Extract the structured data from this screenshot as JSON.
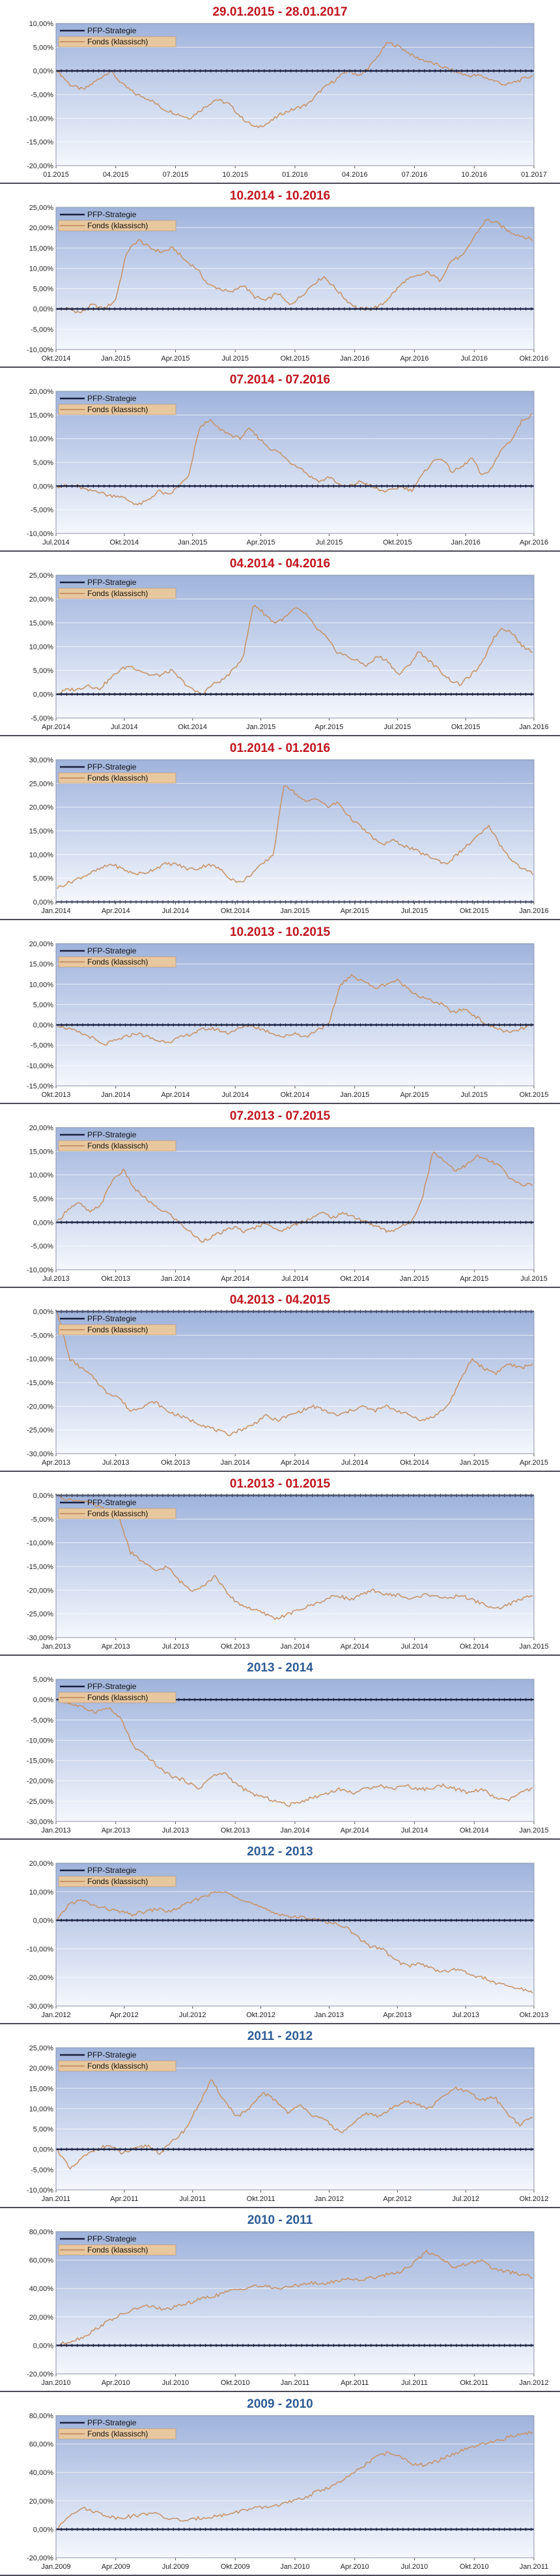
{
  "colors": {
    "strategy_line": "#1a2040",
    "fund_line": "#c8946a",
    "title_red": "#c0141e",
    "title_blue": "#2e5b96",
    "plot_top": "#9fb3dc",
    "plot_bottom": "#f4f7fd",
    "panel_separator": "#4a4a58"
  },
  "legend": {
    "strategy": "PFP-Strategie",
    "fund": "Fonds (klassisch)"
  },
  "chart_data": [
    {
      "type": "line",
      "title": "29.01.2015 - 28.01.2017",
      "title_color": "red",
      "yticks": [
        "10,00%",
        "5,00%",
        "0,00%",
        "-5,00%",
        "-10,00%",
        "-15,00%",
        "-20,00%"
      ],
      "ylim": [
        -20,
        10
      ],
      "xticks": [
        "01.2015",
        "04.2015",
        "07.2015",
        "10.2015",
        "01.2016",
        "04.2016",
        "07.2016",
        "10.2016",
        "01.2017"
      ],
      "series": [
        {
          "name": "PFP-Strategie",
          "values": [
            0,
            0
          ]
        },
        {
          "name": "Fonds (klassisch)",
          "values": [
            0,
            -3,
            -4,
            -2,
            0,
            -3,
            -5,
            -6,
            -8,
            -9,
            -10,
            -8,
            -6,
            -7,
            -10,
            -12,
            -11,
            -9,
            -8,
            -7,
            -4,
            -2,
            0,
            -1,
            2,
            6,
            5,
            3,
            2,
            1,
            0,
            -1,
            -1,
            -2,
            -3,
            -2,
            -1
          ]
        }
      ]
    },
    {
      "type": "line",
      "title": "10.2014 - 10.2016",
      "title_color": "red",
      "yticks": [
        "25,00%",
        "20,00%",
        "15,00%",
        "10,00%",
        "5,00%",
        "0,00%",
        "-5,00%",
        "-10,00%"
      ],
      "ylim": [
        -10,
        25
      ],
      "xticks": [
        "Okt.2014",
        "Jan.2015",
        "Apr.2015",
        "Jul.2015",
        "Okt.2015",
        "Jan.2016",
        "Apr.2016",
        "Jul.2016",
        "Okt.2016"
      ],
      "series": [
        {
          "name": "PFP-Strategie",
          "values": [
            0,
            0
          ]
        },
        {
          "name": "Fonds (klassisch)",
          "values": [
            0,
            0,
            -1,
            1,
            0,
            2,
            14,
            17,
            15,
            14,
            15,
            12,
            10,
            6,
            5,
            4,
            6,
            3,
            2,
            4,
            1,
            3,
            6,
            8,
            5,
            2,
            0,
            0,
            1,
            4,
            7,
            8,
            9,
            7,
            12,
            13,
            18,
            22,
            21,
            19,
            18,
            17
          ]
        }
      ]
    },
    {
      "type": "line",
      "title": "07.2014 - 07.2016",
      "title_color": "red",
      "yticks": [
        "20,00%",
        "15,00%",
        "10,00%",
        "5,00%",
        "0,00%",
        "-5,00%",
        "-10,00%"
      ],
      "ylim": [
        -10,
        20
      ],
      "xticks": [
        "Jul.2014",
        "Okt.2014",
        "Jan.2015",
        "Apr.2015",
        "Jul.2015",
        "Okt.2015",
        "Jan.2016",
        "Apr.2016"
      ],
      "series": [
        {
          "name": "PFP-Strategie",
          "values": [
            0,
            0
          ]
        },
        {
          "name": "Fonds (klassisch)",
          "values": [
            0,
            0,
            0,
            -1,
            -1,
            -2,
            -2,
            -3,
            -4,
            -3,
            -1,
            -2,
            0,
            2,
            12,
            14,
            12,
            11,
            10,
            12,
            10,
            8,
            7,
            5,
            4,
            2,
            1,
            2,
            0,
            0,
            1,
            0,
            -1,
            -1,
            0,
            -1,
            2,
            5,
            6,
            3,
            4,
            6,
            2,
            4,
            8,
            10,
            14,
            15
          ]
        }
      ]
    },
    {
      "type": "line",
      "title": "04.2014 - 04.2016",
      "title_color": "red",
      "yticks": [
        "25,00%",
        "20,00%",
        "15,00%",
        "10,00%",
        "5,00%",
        "0,00%",
        "-5,00%"
      ],
      "ylim": [
        -5,
        25
      ],
      "xticks": [
        "Apr.2014",
        "Jul.2014",
        "Okt.2014",
        "Jan.2015",
        "Apr.2015",
        "Jul.2015",
        "Okt.2015",
        "Jan.2016"
      ],
      "series": [
        {
          "name": "PFP-Strategie",
          "values": [
            0,
            0
          ]
        },
        {
          "name": "Fonds (klassisch)",
          "values": [
            0,
            1,
            1,
            2,
            1,
            3,
            5,
            6,
            5,
            4,
            4,
            5,
            3,
            1,
            0,
            2,
            3,
            5,
            8,
            19,
            17,
            15,
            16,
            18,
            17,
            14,
            12,
            9,
            8,
            7,
            6,
            8,
            7,
            4,
            6,
            9,
            7,
            5,
            3,
            2,
            4,
            6,
            11,
            14,
            13,
            10,
            9
          ]
        }
      ]
    },
    {
      "type": "line",
      "title": "01.2014 - 01.2016",
      "title_color": "red",
      "yticks": [
        "30,00%",
        "25,00%",
        "20,00%",
        "15,00%",
        "10,00%",
        "5,00%",
        "0,00%"
      ],
      "ylim": [
        0,
        30
      ],
      "xticks": [
        "Jan.2014",
        "Apr.2014",
        "Jul.2014",
        "Okt.2014",
        "Jan.2015",
        "Apr.2015",
        "Jul.2015",
        "Okt.2015",
        "Jan.2016"
      ],
      "series": [
        {
          "name": "PFP-Strategie",
          "values": [
            0,
            0
          ]
        },
        {
          "name": "Fonds (klassisch)",
          "values": [
            3,
            4,
            5,
            6,
            7,
            8,
            7,
            6,
            6,
            7,
            8,
            8,
            7,
            7,
            8,
            7,
            5,
            4,
            6,
            8,
            10,
            25,
            23,
            21,
            22,
            20,
            21,
            18,
            16,
            14,
            12,
            13,
            12,
            11,
            10,
            9,
            8,
            10,
            12,
            14,
            16,
            12,
            9,
            7,
            6
          ]
        }
      ]
    },
    {
      "type": "line",
      "title": "10.2013 - 10.2015",
      "title_color": "red",
      "yticks": [
        "20,00%",
        "15,00%",
        "10,00%",
        "5,00%",
        "0,00%",
        "-5,00%",
        "-10,00%",
        "-15,00%"
      ],
      "ylim": [
        -15,
        20
      ],
      "xticks": [
        "Okt.2013",
        "Jan.2014",
        "Apr.2014",
        "Jul.2014",
        "Okt.2014",
        "Jan.2015",
        "Apr.2015",
        "Jul.2015",
        "Okt.2015"
      ],
      "series": [
        {
          "name": "PFP-Strategie",
          "values": [
            0,
            0
          ]
        },
        {
          "name": "Fonds (klassisch)",
          "values": [
            0,
            -1,
            -2,
            -3,
            -5,
            -4,
            -3,
            -2,
            -3,
            -4,
            -4,
            -3,
            -2,
            -1,
            -1,
            -2,
            -1,
            0,
            -1,
            -2,
            -3,
            -2,
            -3,
            -1,
            0,
            10,
            12,
            11,
            9,
            10,
            11,
            9,
            7,
            6,
            5,
            3,
            4,
            2,
            0,
            -1,
            -2,
            -1,
            0
          ]
        }
      ]
    },
    {
      "type": "line",
      "title": "07.2013 - 07.2015",
      "title_color": "red",
      "yticks": [
        "20,00%",
        "15,00%",
        "10,00%",
        "5,00%",
        "0,00%",
        "-5,00%",
        "-10,00%"
      ],
      "ylim": [
        -10,
        20
      ],
      "xticks": [
        "Jul.2013",
        "Okt.2013",
        "Jan.2014",
        "Apr.2014",
        "Jul.2014",
        "Okt.2014",
        "Jan.2015",
        "Apr.2015",
        "Jul.2015"
      ],
      "series": [
        {
          "name": "PFP-Strategie",
          "values": [
            0,
            0
          ]
        },
        {
          "name": "Fonds (klassisch)",
          "values": [
            0,
            3,
            4,
            2,
            4,
            9,
            11,
            7,
            5,
            3,
            2,
            0,
            -2,
            -4,
            -3,
            -2,
            -1,
            -2,
            -1,
            0,
            -2,
            -1,
            0,
            1,
            2,
            1,
            2,
            1,
            0,
            -1,
            -2,
            -1,
            0,
            5,
            15,
            13,
            11,
            12,
            14,
            13,
            12,
            9,
            8,
            8
          ]
        }
      ]
    },
    {
      "type": "line",
      "title": "04.2013 - 04.2015",
      "title_color": "red",
      "yticks": [
        "0,00%",
        "-5,00%",
        "-10,00%",
        "-15,00%",
        "-20,00%",
        "-25,00%",
        "-30,00%"
      ],
      "ylim": [
        -30,
        0
      ],
      "xticks": [
        "Apr.2013",
        "Jul.2013",
        "Okt.2013",
        "Jan.2014",
        "Apr.2014",
        "Jul.2014",
        "Okt.2014",
        "Jan.2015",
        "Apr.2015"
      ],
      "series": [
        {
          "name": "PFP-Strategie",
          "values": [
            0,
            0
          ]
        },
        {
          "name": "Fonds (klassisch)",
          "values": [
            0,
            -10,
            -12,
            -14,
            -17,
            -18,
            -21,
            -20,
            -19,
            -21,
            -22,
            -23,
            -24,
            -25,
            -26,
            -25,
            -24,
            -22,
            -23,
            -22,
            -21,
            -20,
            -21,
            -22,
            -21,
            -20,
            -21,
            -20,
            -21,
            -22,
            -23,
            -22,
            -20,
            -15,
            -10,
            -12,
            -13,
            -11,
            -12,
            -11
          ]
        }
      ]
    },
    {
      "type": "line",
      "title": "01.2013 - 01.2015",
      "title_color": "red",
      "yticks": [
        "0,00%",
        "-5,00%",
        "-10,00%",
        "-15,00%",
        "-20,00%",
        "-25,00%",
        "-30,00%"
      ],
      "ylim": [
        -30,
        0
      ],
      "xticks": [
        "Jan.2013",
        "Apr.2013",
        "Jul.2013",
        "Okt.2013",
        "Jan.2014",
        "Apr.2014",
        "Jul.2014",
        "Okt.2014",
        "Jan.2015"
      ],
      "series": [
        {
          "name": "PFP-Strategie",
          "values": [
            0,
            0
          ]
        },
        {
          "name": "Fonds (klassisch)",
          "values": [
            0,
            -1,
            -1,
            -2,
            -3,
            -4,
            -12,
            -14,
            -16,
            -15,
            -18,
            -20,
            -19,
            -17,
            -21,
            -23,
            -24,
            -25,
            -26,
            -25,
            -24,
            -23,
            -22,
            -21,
            -22,
            -21,
            -20,
            -21,
            -21,
            -22,
            -21,
            -21,
            -22,
            -21,
            -22,
            -23,
            -24,
            -23,
            -22,
            -21
          ]
        }
      ]
    },
    {
      "type": "line",
      "title": "2013 - 2014",
      "title_color": "blue",
      "yticks": [
        "5,00%",
        "0,00%",
        "-5,00%",
        "-10,00%",
        "-15,00%",
        "-20,00%",
        "-25,00%",
        "-30,00%"
      ],
      "ylim": [
        -30,
        5
      ],
      "xticks": [
        "Jan.2013",
        "Apr.2013",
        "Jul.2013",
        "Okt.2013",
        "Jan.2014",
        "Apr.2014",
        "Jul.2014",
        "Okt.2014",
        "Jan.2015"
      ],
      "series": [
        {
          "name": "PFP-Strategie",
          "values": [
            0,
            0
          ]
        },
        {
          "name": "Fonds (klassisch)",
          "values": [
            0,
            -1,
            -2,
            -3,
            -2,
            -5,
            -12,
            -14,
            -17,
            -19,
            -20,
            -22,
            -19,
            -18,
            -21,
            -23,
            -24,
            -25,
            -26,
            -25,
            -24,
            -23,
            -22,
            -23,
            -22,
            -21,
            -22,
            -21,
            -22,
            -22,
            -21,
            -22,
            -23,
            -22,
            -24,
            -25,
            -23,
            -22
          ]
        }
      ]
    },
    {
      "type": "line",
      "title": "2012 - 2013",
      "title_color": "blue",
      "yticks": [
        "20,00%",
        "10,00%",
        "0,00%",
        "-10,00%",
        "-20,00%",
        "-30,00%"
      ],
      "ylim": [
        -30,
        20
      ],
      "xticks": [
        "Jan.2012",
        "Apr.2012",
        "Jul.2012",
        "Okt.2012",
        "Jan.2013",
        "Apr.2013",
        "Jul.2013",
        "Okt.2013"
      ],
      "series": [
        {
          "name": "PFP-Strategie",
          "values": [
            0,
            0
          ]
        },
        {
          "name": "Fonds (klassisch)",
          "values": [
            0,
            6,
            7,
            5,
            4,
            3,
            2,
            3,
            4,
            3,
            5,
            7,
            9,
            10,
            9,
            7,
            5,
            3,
            2,
            1,
            1,
            0,
            -1,
            -2,
            -6,
            -9,
            -10,
            -14,
            -16,
            -15,
            -17,
            -18,
            -17,
            -19,
            -20,
            -22,
            -23,
            -24,
            -25
          ]
        }
      ]
    },
    {
      "type": "line",
      "title": "2011 - 2012",
      "title_color": "blue",
      "yticks": [
        "25,00%",
        "20,00%",
        "15,00%",
        "10,00%",
        "5,00%",
        "0,00%",
        "-5,00%",
        "-10,00%"
      ],
      "ylim": [
        -10,
        25
      ],
      "xticks": [
        "Jan.2011",
        "Apr.2011",
        "Jul.2011",
        "Okt.2011",
        "Jan.2012",
        "Apr.2012",
        "Jul.2012",
        "Okt.2012"
      ],
      "series": [
        {
          "name": "PFP-Strategie",
          "values": [
            0,
            0
          ]
        },
        {
          "name": "Fonds (klassisch)",
          "values": [
            0,
            -5,
            -2,
            0,
            1,
            -1,
            0,
            1,
            -1,
            2,
            5,
            11,
            17,
            12,
            8,
            10,
            14,
            12,
            9,
            11,
            8,
            7,
            4,
            6,
            9,
            8,
            10,
            12,
            11,
            10,
            13,
            15,
            14,
            12,
            13,
            9,
            6,
            8
          ]
        }
      ]
    },
    {
      "type": "line",
      "title": "2010 - 2011",
      "title_color": "blue",
      "yticks": [
        "80,00%",
        "60,00%",
        "40,00%",
        "20,00%",
        "0,00%",
        "-20,00%"
      ],
      "ylim": [
        -20,
        80
      ],
      "xticks": [
        "Jan.2010",
        "Apr.2010",
        "Jul.2010",
        "Okt.2010",
        "Jan.2011",
        "Apr.2011",
        "Jul.2011",
        "Okt.2011",
        "Jan.2012"
      ],
      "series": [
        {
          "name": "PFP-Strategie",
          "values": [
            0,
            0
          ]
        },
        {
          "name": "Fonds (klassisch)",
          "values": [
            0,
            3,
            6,
            12,
            18,
            22,
            26,
            28,
            25,
            27,
            30,
            33,
            35,
            38,
            40,
            42,
            41,
            40,
            42,
            44,
            43,
            45,
            47,
            46,
            48,
            50,
            52,
            58,
            66,
            62,
            55,
            57,
            60,
            54,
            52,
            50,
            48
          ]
        }
      ]
    },
    {
      "type": "line",
      "title": "2009 - 2010",
      "title_color": "blue",
      "yticks": [
        "80,00%",
        "60,00%",
        "40,00%",
        "20,00%",
        "0,00%",
        "-20,00%"
      ],
      "ylim": [
        -20,
        80
      ],
      "xticks": [
        "Jan.2009",
        "Apr.2009",
        "Jul.2009",
        "Okt.2009",
        "Jan.2010",
        "Apr.2010",
        "Jul.2010",
        "Okt.2010",
        "Jan.2011"
      ],
      "series": [
        {
          "name": "PFP-Strategie",
          "values": [
            0,
            0
          ]
        },
        {
          "name": "Fonds (klassisch)",
          "values": [
            0,
            10,
            15,
            13,
            10,
            8,
            9,
            10,
            12,
            8,
            7,
            6,
            8,
            9,
            10,
            12,
            14,
            15,
            16,
            18,
            20,
            23,
            27,
            30,
            34,
            40,
            46,
            52,
            54,
            50,
            46,
            45,
            48,
            52,
            55,
            58,
            60,
            62,
            65,
            67,
            68
          ]
        }
      ]
    }
  ]
}
